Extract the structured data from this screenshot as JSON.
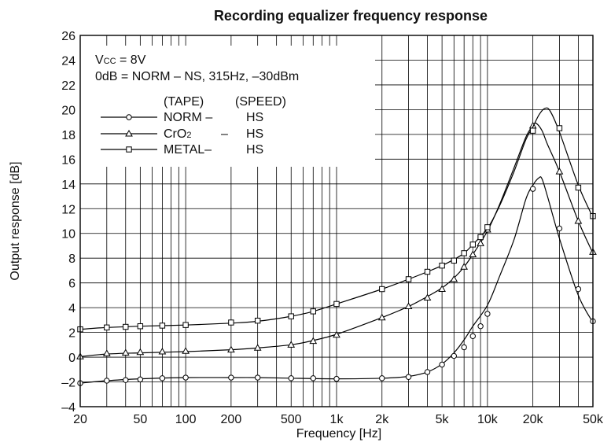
{
  "chart_data": {
    "type": "line",
    "title": "Recording equalizer frequency response",
    "xlabel": "Frequency [Hz]",
    "ylabel": "Output response [dB]",
    "x_scale": "log",
    "xlim": [
      20,
      50000
    ],
    "ylim": [
      -4,
      26
    ],
    "grid": true,
    "x_ticks": [
      {
        "value": 20,
        "label": "20"
      },
      {
        "value": 50,
        "label": "50"
      },
      {
        "value": 100,
        "label": "100"
      },
      {
        "value": 200,
        "label": "200"
      },
      {
        "value": 500,
        "label": "500"
      },
      {
        "value": 1000,
        "label": "1k"
      },
      {
        "value": 2000,
        "label": "2k"
      },
      {
        "value": 5000,
        "label": "5k"
      },
      {
        "value": 10000,
        "label": "10k"
      },
      {
        "value": 20000,
        "label": "20k"
      },
      {
        "value": 50000,
        "label": "50k"
      }
    ],
    "y_ticks": [
      {
        "value": -4,
        "label": "–4"
      },
      {
        "value": -2,
        "label": "–2"
      },
      {
        "value": 0,
        "label": "0"
      },
      {
        "value": 2,
        "label": "2"
      },
      {
        "value": 4,
        "label": "4"
      },
      {
        "value": 6,
        "label": "6"
      },
      {
        "value": 8,
        "label": "8"
      },
      {
        "value": 10,
        "label": "10"
      },
      {
        "value": 12,
        "label": "12"
      },
      {
        "value": 14,
        "label": "14"
      },
      {
        "value": 16,
        "label": "16"
      },
      {
        "value": 18,
        "label": "18"
      },
      {
        "value": 20,
        "label": "20"
      },
      {
        "value": 22,
        "label": "22"
      },
      {
        "value": 24,
        "label": "24"
      },
      {
        "value": 26,
        "label": "26"
      }
    ],
    "conditions": {
      "vcc_main": "V",
      "vcc_sub": "CC",
      "vcc_value": " = 8V",
      "reference": "0dB = NORM – NS, 315Hz, –30dBm"
    },
    "legend": {
      "placement": "top-left",
      "header_tape": "(TAPE)",
      "header_speed": "(SPEED)"
    },
    "series": [
      {
        "name": "NORM –",
        "tape_main": "NORM –",
        "tape_sub": "",
        "speed": "HS",
        "marker": "circle",
        "curve": [
          [
            20,
            -2.1
          ],
          [
            30,
            -1.9
          ],
          [
            50,
            -1.75
          ],
          [
            100,
            -1.65
          ],
          [
            200,
            -1.65
          ],
          [
            300,
            -1.65
          ],
          [
            500,
            -1.7
          ],
          [
            1000,
            -1.75
          ],
          [
            2000,
            -1.7
          ],
          [
            3000,
            -1.55
          ],
          [
            4000,
            -1.2
          ],
          [
            5000,
            -0.55
          ],
          [
            6000,
            0.35
          ],
          [
            7000,
            1.4
          ],
          [
            8000,
            2.5
          ],
          [
            10000,
            4.2
          ],
          [
            12000,
            6.5
          ],
          [
            15000,
            9.5
          ],
          [
            18000,
            12.8
          ],
          [
            20000,
            13.9
          ],
          [
            22000,
            14.5
          ],
          [
            23000,
            14.4
          ],
          [
            25000,
            13.0
          ],
          [
            30000,
            9.6
          ],
          [
            40000,
            5.0
          ],
          [
            50000,
            2.8
          ]
        ],
        "markers": [
          [
            20,
            -2.1
          ],
          [
            30,
            -1.9
          ],
          [
            40,
            -1.85
          ],
          [
            50,
            -1.8
          ],
          [
            70,
            -1.7
          ],
          [
            100,
            -1.65
          ],
          [
            200,
            -1.65
          ],
          [
            300,
            -1.65
          ],
          [
            500,
            -1.7
          ],
          [
            700,
            -1.7
          ],
          [
            1000,
            -1.75
          ],
          [
            2000,
            -1.7
          ],
          [
            3000,
            -1.6
          ],
          [
            4000,
            -1.2
          ],
          [
            5000,
            -0.6
          ],
          [
            6000,
            0.1
          ],
          [
            7000,
            0.8
          ],
          [
            8000,
            1.7
          ],
          [
            9000,
            2.5
          ],
          [
            10000,
            3.5
          ],
          [
            20000,
            13.6
          ],
          [
            30000,
            10.4
          ],
          [
            40000,
            5.5
          ],
          [
            50000,
            2.9
          ]
        ]
      },
      {
        "name": "CrO2 –",
        "tape_main": "CrO",
        "tape_sub": "2",
        "tape_after": "–",
        "speed": "HS",
        "marker": "triangle",
        "curve": [
          [
            20,
            0.05
          ],
          [
            30,
            0.25
          ],
          [
            50,
            0.35
          ],
          [
            100,
            0.45
          ],
          [
            200,
            0.6
          ],
          [
            300,
            0.75
          ],
          [
            500,
            1.0
          ],
          [
            700,
            1.35
          ],
          [
            1000,
            1.85
          ],
          [
            2000,
            3.2
          ],
          [
            3000,
            4.1
          ],
          [
            4000,
            4.9
          ],
          [
            5000,
            5.6
          ],
          [
            6000,
            6.4
          ],
          [
            7000,
            7.3
          ],
          [
            8000,
            8.3
          ],
          [
            10000,
            10.2
          ],
          [
            12000,
            12.3
          ],
          [
            15000,
            15.3
          ],
          [
            18000,
            17.8
          ],
          [
            20000,
            18.7
          ],
          [
            21000,
            18.9
          ],
          [
            23000,
            18.3
          ],
          [
            25000,
            17.2
          ],
          [
            30000,
            15.0
          ],
          [
            40000,
            11.0
          ],
          [
            50000,
            8.4
          ]
        ],
        "markers": [
          [
            20,
            0.05
          ],
          [
            30,
            0.3
          ],
          [
            40,
            0.35
          ],
          [
            50,
            0.4
          ],
          [
            70,
            0.45
          ],
          [
            100,
            0.5
          ],
          [
            200,
            0.6
          ],
          [
            300,
            0.75
          ],
          [
            500,
            1.0
          ],
          [
            700,
            1.3
          ],
          [
            1000,
            1.8
          ],
          [
            2000,
            3.2
          ],
          [
            3000,
            4.1
          ],
          [
            4000,
            4.8
          ],
          [
            5000,
            5.5
          ],
          [
            6000,
            6.3
          ],
          [
            7000,
            7.3
          ],
          [
            8000,
            8.3
          ],
          [
            9000,
            9.2
          ],
          [
            10000,
            10.3
          ],
          [
            20000,
            18.7
          ],
          [
            30000,
            15.0
          ],
          [
            40000,
            11.0
          ],
          [
            50000,
            8.5
          ]
        ]
      },
      {
        "name": "METAL–",
        "tape_main": "METAL–",
        "tape_sub": "",
        "speed": "HS",
        "marker": "square",
        "curve": [
          [
            20,
            2.25
          ],
          [
            30,
            2.4
          ],
          [
            50,
            2.5
          ],
          [
            100,
            2.6
          ],
          [
            200,
            2.75
          ],
          [
            300,
            2.9
          ],
          [
            500,
            3.3
          ],
          [
            700,
            3.7
          ],
          [
            1000,
            4.3
          ],
          [
            2000,
            5.5
          ],
          [
            3000,
            6.3
          ],
          [
            4000,
            6.9
          ],
          [
            5000,
            7.4
          ],
          [
            6000,
            7.9
          ],
          [
            7000,
            8.4
          ],
          [
            8000,
            9.1
          ],
          [
            10000,
            10.4
          ],
          [
            12000,
            12.2
          ],
          [
            15000,
            15.0
          ],
          [
            18000,
            17.6
          ],
          [
            20000,
            18.6
          ],
          [
            22000,
            19.6
          ],
          [
            24000,
            20.1
          ],
          [
            26000,
            19.9
          ],
          [
            30000,
            18.2
          ],
          [
            40000,
            13.9
          ],
          [
            50000,
            11.3
          ]
        ],
        "markers": [
          [
            20,
            2.25
          ],
          [
            30,
            2.4
          ],
          [
            40,
            2.45
          ],
          [
            50,
            2.5
          ],
          [
            70,
            2.55
          ],
          [
            100,
            2.6
          ],
          [
            200,
            2.8
          ],
          [
            300,
            2.95
          ],
          [
            500,
            3.3
          ],
          [
            700,
            3.7
          ],
          [
            1000,
            4.3
          ],
          [
            2000,
            5.5
          ],
          [
            3000,
            6.3
          ],
          [
            4000,
            6.9
          ],
          [
            5000,
            7.4
          ],
          [
            6000,
            7.8
          ],
          [
            7000,
            8.4
          ],
          [
            8000,
            9.1
          ],
          [
            9000,
            9.7
          ],
          [
            10000,
            10.5
          ],
          [
            20000,
            18.3
          ],
          [
            30000,
            18.5
          ],
          [
            40000,
            13.7
          ],
          [
            50000,
            11.4
          ]
        ]
      }
    ]
  }
}
